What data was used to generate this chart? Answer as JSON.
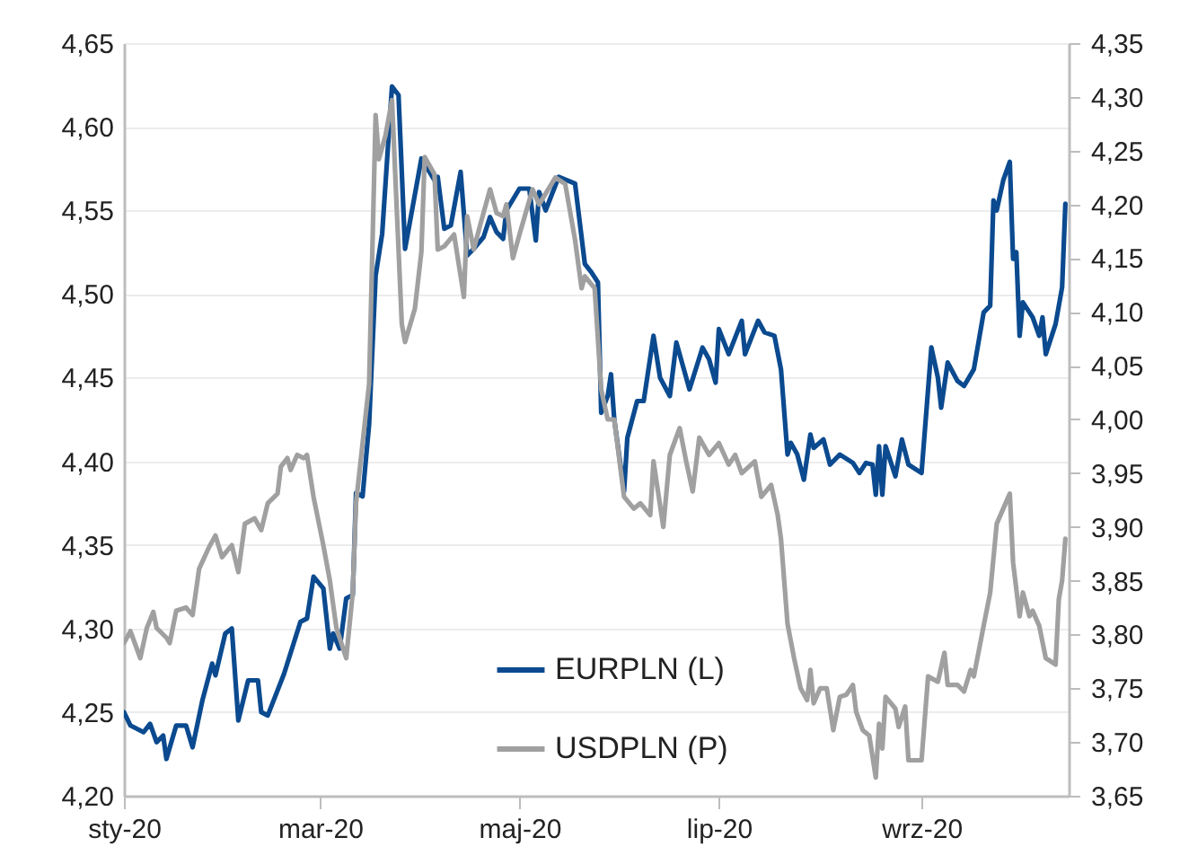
{
  "chart_data": {
    "type": "line",
    "xlim": [
      "2020-01-01",
      "2020-10-16"
    ],
    "xticks": [
      {
        "value": "2020-01-01",
        "label": "sty-20"
      },
      {
        "value": "2020-03-01",
        "label": "mar-20"
      },
      {
        "value": "2020-05-01",
        "label": "maj-20"
      },
      {
        "value": "2020-07-01",
        "label": "lip-20"
      },
      {
        "value": "2020-09-01",
        "label": "wrz-20"
      }
    ],
    "ylim": [
      4.2,
      4.65
    ],
    "yticks": [
      {
        "value": 4.2,
        "label": "4,20"
      },
      {
        "value": 4.25,
        "label": "4,25"
      },
      {
        "value": 4.3,
        "label": "4,30"
      },
      {
        "value": 4.35,
        "label": "4,35"
      },
      {
        "value": 4.4,
        "label": "4,40"
      },
      {
        "value": 4.45,
        "label": "4,45"
      },
      {
        "value": 4.5,
        "label": "4,50"
      },
      {
        "value": 4.55,
        "label": "4,55"
      },
      {
        "value": 4.6,
        "label": "4,60"
      },
      {
        "value": 4.65,
        "label": "4,65"
      }
    ],
    "y2lim": [
      3.65,
      4.35
    ],
    "y2ticks": [
      {
        "value": 3.65,
        "label": "3,65"
      },
      {
        "value": 3.7,
        "label": "3,70"
      },
      {
        "value": 3.75,
        "label": "3,75"
      },
      {
        "value": 3.8,
        "label": "3,80"
      },
      {
        "value": 3.85,
        "label": "3,85"
      },
      {
        "value": 3.9,
        "label": "3,90"
      },
      {
        "value": 3.95,
        "label": "3,95"
      },
      {
        "value": 4.0,
        "label": "4,00"
      },
      {
        "value": 4.05,
        "label": "4,05"
      },
      {
        "value": 4.1,
        "label": "4,10"
      },
      {
        "value": 4.15,
        "label": "4,15"
      },
      {
        "value": 4.2,
        "label": "4,20"
      },
      {
        "value": 4.25,
        "label": "4,25"
      },
      {
        "value": 4.3,
        "label": "4,30"
      },
      {
        "value": 4.35,
        "label": "4,35"
      }
    ],
    "grid": "y",
    "legend": "bottom right",
    "line_style": "solid",
    "marker": "none",
    "series": [
      {
        "name": "EURPLN (L)",
        "color": "#0b4a8f",
        "axis": "y",
        "x": [
          "2020-01-01",
          "2020-01-03",
          "2020-01-07",
          "2020-01-09",
          "2020-01-11",
          "2020-01-13",
          "2020-01-14",
          "2020-01-17",
          "2020-01-20",
          "2020-01-22",
          "2020-01-25",
          "2020-01-28",
          "2020-01-29",
          "2020-02-01",
          "2020-02-03",
          "2020-02-05",
          "2020-02-08",
          "2020-02-11",
          "2020-02-12",
          "2020-02-14",
          "2020-02-19",
          "2020-02-24",
          "2020-02-26",
          "2020-02-28",
          "2020-03-02",
          "2020-03-04",
          "2020-03-05",
          "2020-03-07",
          "2020-03-09",
          "2020-03-11",
          "2020-03-12",
          "2020-03-14",
          "2020-03-16",
          "2020-03-18",
          "2020-03-20",
          "2020-03-23",
          "2020-03-25",
          "2020-03-27",
          "2020-04-01",
          "2020-04-05",
          "2020-04-06",
          "2020-04-08",
          "2020-04-10",
          "2020-04-13",
          "2020-04-15",
          "2020-04-17",
          "2020-04-20",
          "2020-04-22",
          "2020-04-24",
          "2020-04-26",
          "2020-04-27",
          "2020-05-01",
          "2020-05-04",
          "2020-05-06",
          "2020-05-07",
          "2020-05-09",
          "2020-05-13",
          "2020-05-18",
          "2020-05-21",
          "2020-05-23",
          "2020-05-25",
          "2020-05-26",
          "2020-05-28",
          "2020-05-29",
          "2020-05-30",
          "2020-06-02",
          "2020-06-03",
          "2020-06-06",
          "2020-06-08",
          "2020-06-11",
          "2020-06-13",
          "2020-06-16",
          "2020-06-18",
          "2020-06-22",
          "2020-06-26",
          "2020-06-28",
          "2020-06-30",
          "2020-07-01",
          "2020-07-04",
          "2020-07-08",
          "2020-07-09",
          "2020-07-13",
          "2020-07-15",
          "2020-07-18",
          "2020-07-20",
          "2020-07-22",
          "2020-07-23",
          "2020-07-25",
          "2020-07-27",
          "2020-07-29",
          "2020-07-30",
          "2020-08-02",
          "2020-08-04",
          "2020-08-07",
          "2020-08-11",
          "2020-08-13",
          "2020-08-15",
          "2020-08-17",
          "2020-08-18",
          "2020-08-19",
          "2020-08-20",
          "2020-08-21",
          "2020-08-24",
          "2020-08-26",
          "2020-08-28",
          "2020-09-01",
          "2020-09-04",
          "2020-09-06",
          "2020-09-07",
          "2020-09-09",
          "2020-09-12",
          "2020-09-14",
          "2020-09-17",
          "2020-09-20",
          "2020-09-22",
          "2020-09-23",
          "2020-09-24",
          "2020-09-26",
          "2020-09-28",
          "2020-09-29",
          "2020-09-30",
          "2020-10-01",
          "2020-10-02",
          "2020-10-05",
          "2020-10-07",
          "2020-10-08",
          "2020-10-09",
          "2020-10-12",
          "2020-10-14",
          "2020-10-15"
        ],
        "values": [
          4.25,
          4.242,
          4.238,
          4.243,
          4.232,
          4.236,
          4.222,
          4.242,
          4.242,
          4.229,
          4.257,
          4.279,
          4.272,
          4.297,
          4.3,
          4.245,
          4.269,
          4.269,
          4.25,
          4.248,
          4.273,
          4.304,
          4.306,
          4.331,
          4.324,
          4.288,
          4.297,
          4.288,
          4.318,
          4.32,
          4.381,
          4.379,
          4.422,
          4.511,
          4.536,
          4.624,
          4.619,
          4.527,
          4.581,
          4.568,
          4.57,
          4.539,
          4.541,
          4.573,
          4.523,
          4.527,
          4.534,
          4.546,
          4.537,
          4.533,
          4.55,
          4.563,
          4.563,
          4.532,
          4.561,
          4.55,
          4.57,
          4.566,
          4.518,
          4.513,
          4.507,
          4.429,
          4.439,
          4.452,
          4.425,
          4.382,
          4.414,
          4.436,
          4.436,
          4.475,
          4.45,
          4.439,
          4.471,
          4.443,
          4.468,
          4.461,
          4.447,
          4.479,
          4.464,
          4.484,
          4.464,
          4.484,
          4.477,
          4.475,
          4.455,
          4.404,
          4.411,
          4.404,
          4.389,
          4.416,
          4.408,
          4.413,
          4.398,
          4.404,
          4.399,
          4.393,
          4.399,
          4.398,
          4.38,
          4.409,
          4.38,
          4.409,
          4.391,
          4.413,
          4.398,
          4.393,
          4.468,
          4.45,
          4.432,
          4.459,
          4.448,
          4.445,
          4.455,
          4.489,
          4.493,
          4.556,
          4.55,
          4.568,
          4.579,
          4.521,
          4.525,
          4.475,
          4.495,
          4.486,
          4.475,
          4.486,
          4.464,
          4.482,
          4.504,
          4.554
        ]
      },
      {
        "name": "USDPLN (P)",
        "color": "#a0a0a0",
        "axis": "y2",
        "x": [
          "2020-01-01",
          "2020-01-03",
          "2020-01-06",
          "2020-01-08",
          "2020-01-10",
          "2020-01-11",
          "2020-01-14",
          "2020-01-15",
          "2020-01-17",
          "2020-01-20",
          "2020-01-22",
          "2020-01-24",
          "2020-01-27",
          "2020-01-29",
          "2020-01-31",
          "2020-02-03",
          "2020-02-05",
          "2020-02-07",
          "2020-02-10",
          "2020-02-12",
          "2020-02-14",
          "2020-02-17",
          "2020-02-18",
          "2020-02-20",
          "2020-02-21",
          "2020-02-23",
          "2020-02-25",
          "2020-02-26",
          "2020-02-28",
          "2020-03-02",
          "2020-03-04",
          "2020-03-06",
          "2020-03-09",
          "2020-03-11",
          "2020-03-12",
          "2020-03-16",
          "2020-03-18",
          "2020-03-19",
          "2020-03-21",
          "2020-03-23",
          "2020-03-26",
          "2020-03-27",
          "2020-03-30",
          "2020-04-01",
          "2020-04-02",
          "2020-04-05",
          "2020-04-06",
          "2020-04-08",
          "2020-04-11",
          "2020-04-14",
          "2020-04-15",
          "2020-04-17",
          "2020-04-19",
          "2020-04-22",
          "2020-04-24",
          "2020-04-26",
          "2020-04-27",
          "2020-04-29",
          "2020-05-01",
          "2020-05-05",
          "2020-05-07",
          "2020-05-12",
          "2020-05-15",
          "2020-05-18",
          "2020-05-20",
          "2020-05-21",
          "2020-05-24",
          "2020-05-26",
          "2020-05-28",
          "2020-05-30",
          "2020-06-02",
          "2020-06-05",
          "2020-06-07",
          "2020-06-10",
          "2020-06-11",
          "2020-06-14",
          "2020-06-16",
          "2020-06-19",
          "2020-06-21",
          "2020-06-23",
          "2020-06-25",
          "2020-06-28",
          "2020-07-01",
          "2020-07-04",
          "2020-07-06",
          "2020-07-08",
          "2020-07-12",
          "2020-07-14",
          "2020-07-17",
          "2020-07-19",
          "2020-07-20",
          "2020-07-22",
          "2020-07-24",
          "2020-07-26",
          "2020-07-28",
          "2020-07-29",
          "2020-07-30",
          "2020-08-01",
          "2020-08-03",
          "2020-08-05",
          "2020-08-07",
          "2020-08-09",
          "2020-08-11",
          "2020-08-12",
          "2020-08-14",
          "2020-08-16",
          "2020-08-18",
          "2020-08-19",
          "2020-08-20",
          "2020-08-21",
          "2020-08-24",
          "2020-08-25",
          "2020-08-27",
          "2020-08-28",
          "2020-09-01",
          "2020-09-03",
          "2020-09-06",
          "2020-09-08",
          "2020-09-09",
          "2020-09-12",
          "2020-09-14",
          "2020-09-16",
          "2020-09-17",
          "2020-09-20",
          "2020-09-22",
          "2020-09-24",
          "2020-09-26",
          "2020-09-28",
          "2020-09-29",
          "2020-10-01",
          "2020-10-02",
          "2020-10-04",
          "2020-10-05",
          "2020-10-07",
          "2020-10-09",
          "2020-10-12",
          "2020-10-13",
          "2020-10-14",
          "2020-10-15"
        ],
        "values": [
          3.792,
          3.803,
          3.778,
          3.806,
          3.821,
          3.806,
          3.797,
          3.792,
          3.822,
          3.825,
          3.818,
          3.861,
          3.881,
          3.892,
          3.872,
          3.883,
          3.858,
          3.903,
          3.908,
          3.897,
          3.922,
          3.931,
          3.956,
          3.964,
          3.953,
          3.967,
          3.964,
          3.967,
          3.928,
          3.883,
          3.85,
          3.806,
          3.778,
          3.839,
          3.922,
          4.033,
          4.283,
          4.242,
          4.264,
          4.297,
          4.089,
          4.072,
          4.103,
          4.156,
          4.244,
          4.228,
          4.158,
          4.161,
          4.172,
          4.114,
          4.189,
          4.158,
          4.181,
          4.214,
          4.192,
          4.189,
          4.2,
          4.15,
          4.172,
          4.214,
          4.2,
          4.225,
          4.219,
          4.167,
          4.122,
          4.133,
          4.122,
          4.028,
          4.0,
          4.0,
          3.928,
          3.917,
          3.922,
          3.911,
          3.961,
          3.9,
          3.967,
          3.992,
          3.961,
          3.933,
          3.983,
          3.967,
          3.978,
          3.958,
          3.967,
          3.95,
          3.961,
          3.928,
          3.939,
          3.911,
          3.889,
          3.81,
          3.778,
          3.75,
          3.739,
          3.767,
          3.736,
          3.75,
          3.75,
          3.711,
          3.742,
          3.744,
          3.753,
          3.728,
          3.711,
          3.706,
          3.667,
          3.717,
          3.694,
          3.742,
          3.731,
          3.714,
          3.733,
          3.683,
          3.683,
          3.761,
          3.756,
          3.783,
          3.753,
          3.753,
          3.747,
          3.767,
          3.761,
          3.808,
          3.839,
          3.903,
          3.917,
          3.931,
          3.867,
          3.817,
          3.839,
          3.817,
          3.822,
          3.808,
          3.778,
          3.772,
          3.833,
          3.85,
          3.889
        ]
      }
    ]
  }
}
